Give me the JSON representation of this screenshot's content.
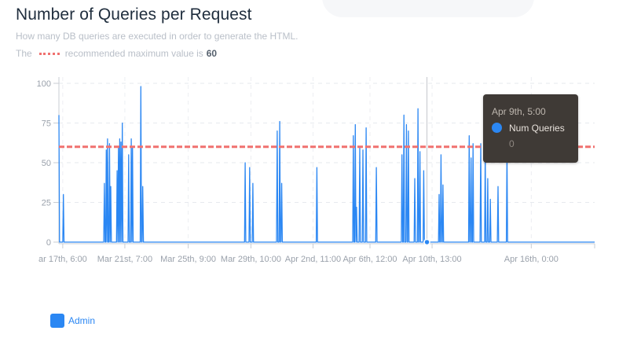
{
  "header": {
    "title": "Number of Queries per Request",
    "subtitle": "How many DB queries are executed in order to generate the HTML.",
    "rec_prefix": "The",
    "rec_text": "recommended maximum value is",
    "rec_value": "60"
  },
  "tooltip": {
    "time": "Apr 9th, 5:00",
    "series_name": "Num Queries",
    "value": "0"
  },
  "legend": {
    "label": "Admin"
  },
  "chart_data": {
    "type": "line",
    "title": "Number of Queries per Request",
    "xlabel": "",
    "ylabel": "",
    "ylim": [
      0,
      100
    ],
    "yticks": [
      0,
      25,
      50,
      75,
      100
    ],
    "grid": true,
    "legend_position": "bottom-left",
    "x_tick_labels": [
      "ar 17th, 6:00",
      "Mar 21st, 7:00",
      "Mar 25th, 9:00",
      "Mar 29th, 10:00",
      "Apr 2nd, 11:00",
      "Apr 6th, 12:00",
      "Apr 10th, 13:00",
      "Apr 16th, 0:00"
    ],
    "x_tick_hours": [
      6,
      103,
      202,
      300,
      397,
      486,
      583,
      738
    ],
    "x_range_hours": [
      0,
      837
    ],
    "recommended_max": 60,
    "colors": {
      "series": "#2b87f3",
      "threshold": "#f0716f"
    },
    "highlight": {
      "hour": 575,
      "value": 0,
      "label": "Apr 9th, 5:00"
    },
    "series": [
      {
        "name": "Num Queries",
        "points": [
          [
            0,
            80
          ],
          [
            1,
            0
          ],
          [
            6,
            0
          ],
          [
            7,
            30
          ],
          [
            8,
            0
          ],
          [
            70,
            0
          ],
          [
            71,
            37
          ],
          [
            72,
            0
          ],
          [
            73,
            0
          ],
          [
            74,
            58
          ],
          [
            75,
            0
          ],
          [
            76,
            65
          ],
          [
            77,
            0
          ],
          [
            78,
            0
          ],
          [
            79,
            62
          ],
          [
            80,
            0
          ],
          [
            81,
            35
          ],
          [
            82,
            0
          ],
          [
            90,
            0
          ],
          [
            91,
            45
          ],
          [
            92,
            0
          ],
          [
            93,
            60
          ],
          [
            94,
            0
          ],
          [
            95,
            65
          ],
          [
            96,
            0
          ],
          [
            97,
            63
          ],
          [
            98,
            0
          ],
          [
            99,
            75
          ],
          [
            100,
            0
          ],
          [
            108,
            0
          ],
          [
            109,
            55
          ],
          [
            110,
            0
          ],
          [
            112,
            0
          ],
          [
            113,
            65
          ],
          [
            114,
            0
          ],
          [
            115,
            60
          ],
          [
            116,
            0
          ],
          [
            127,
            0
          ],
          [
            128,
            98
          ],
          [
            129,
            0
          ],
          [
            130,
            0
          ],
          [
            131,
            35
          ],
          [
            132,
            0
          ],
          [
            290,
            0
          ],
          [
            291,
            50
          ],
          [
            292,
            0
          ],
          [
            297,
            0
          ],
          [
            298,
            47
          ],
          [
            299,
            0
          ],
          [
            302,
            0
          ],
          [
            303,
            37
          ],
          [
            304,
            0
          ],
          [
            340,
            0
          ],
          [
            341,
            70
          ],
          [
            342,
            0
          ],
          [
            344,
            0
          ],
          [
            345,
            76
          ],
          [
            346,
            0
          ],
          [
            347,
            0
          ],
          [
            348,
            37
          ],
          [
            349,
            0
          ],
          [
            402,
            0
          ],
          [
            403,
            47
          ],
          [
            404,
            0
          ],
          [
            459,
            0
          ],
          [
            460,
            67
          ],
          [
            461,
            0
          ],
          [
            462,
            0
          ],
          [
            463,
            74
          ],
          [
            464,
            0
          ],
          [
            465,
            22
          ],
          [
            466,
            0
          ],
          [
            469,
            0
          ],
          [
            470,
            60
          ],
          [
            471,
            0
          ],
          [
            474,
            0
          ],
          [
            475,
            58
          ],
          [
            476,
            0
          ],
          [
            479,
            0
          ],
          [
            480,
            72
          ],
          [
            481,
            0
          ],
          [
            495,
            0
          ],
          [
            496,
            47
          ],
          [
            497,
            0
          ],
          [
            535,
            0
          ],
          [
            536,
            55
          ],
          [
            537,
            0
          ],
          [
            538,
            0
          ],
          [
            539,
            80
          ],
          [
            540,
            0
          ],
          [
            542,
            0
          ],
          [
            543,
            74
          ],
          [
            544,
            0
          ],
          [
            545,
            0
          ],
          [
            546,
            70
          ],
          [
            547,
            0
          ],
          [
            555,
            0
          ],
          [
            556,
            40
          ],
          [
            557,
            0
          ],
          [
            560,
            0
          ],
          [
            561,
            84
          ],
          [
            562,
            0
          ],
          [
            563,
            0
          ],
          [
            564,
            57
          ],
          [
            565,
            0
          ],
          [
            569,
            0
          ],
          [
            570,
            45
          ],
          [
            571,
            0
          ],
          [
            593,
            0
          ],
          [
            594,
            30
          ],
          [
            595,
            0
          ],
          [
            596,
            0
          ],
          [
            597,
            55
          ],
          [
            598,
            0
          ],
          [
            599,
            0
          ],
          [
            600,
            36
          ],
          [
            601,
            0
          ],
          [
            640,
            0
          ],
          [
            641,
            67
          ],
          [
            642,
            0
          ],
          [
            643,
            0
          ],
          [
            644,
            53
          ],
          [
            645,
            0
          ],
          [
            646,
            0
          ],
          [
            647,
            62
          ],
          [
            648,
            0
          ],
          [
            658,
            0
          ],
          [
            659,
            62
          ],
          [
            660,
            0
          ],
          [
            665,
            0
          ],
          [
            666,
            57
          ],
          [
            667,
            0
          ],
          [
            669,
            0
          ],
          [
            670,
            40
          ],
          [
            671,
            0
          ],
          [
            673,
            0
          ],
          [
            674,
            27
          ],
          [
            675,
            0
          ],
          [
            685,
            0
          ],
          [
            686,
            35
          ],
          [
            687,
            0
          ],
          [
            699,
            0
          ],
          [
            700,
            58
          ],
          [
            701,
            0
          ],
          [
            837,
            0
          ]
        ]
      }
    ]
  }
}
